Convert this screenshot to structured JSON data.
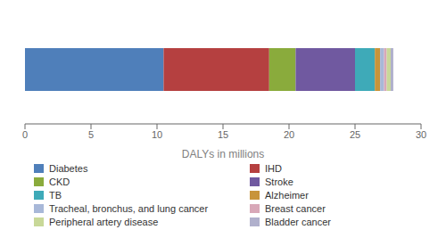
{
  "chart_data": {
    "type": "bar",
    "orientation": "horizontal",
    "stacked": true,
    "xlabel": "DALYs in millions",
    "categories": [
      null
    ],
    "series": [
      {
        "name": "Diabetes",
        "color": "#4f7fba",
        "values": [
          10.5
        ]
      },
      {
        "name": "IHD",
        "color": "#b54040",
        "values": [
          8.0
        ]
      },
      {
        "name": "CKD",
        "color": "#8aab3c",
        "values": [
          2.0
        ]
      },
      {
        "name": "Stroke",
        "color": "#7059a0",
        "values": [
          4.5
        ]
      },
      {
        "name": "TB",
        "color": "#3eaab8",
        "values": [
          1.5
        ]
      },
      {
        "name": "Alzheimer",
        "color": "#c8943a",
        "values": [
          0.4
        ]
      },
      {
        "name": "Tracheal, bronchus, and lung cancer",
        "color": "#a8b8d8",
        "values": [
          0.3
        ]
      },
      {
        "name": "Breast cancer",
        "color": "#d8a8b8",
        "values": [
          0.2
        ]
      },
      {
        "name": "Peripheral artery disease",
        "color": "#c8d898",
        "values": [
          0.3
        ]
      },
      {
        "name": "Bladder cancer",
        "color": "#b0b0cc",
        "values": [
          0.2
        ]
      }
    ],
    "xlim": [
      0,
      30
    ],
    "xticks": [
      0,
      5,
      10,
      15,
      20,
      25,
      30
    ],
    "tick_labels": "x",
    "legend": "bottom"
  }
}
